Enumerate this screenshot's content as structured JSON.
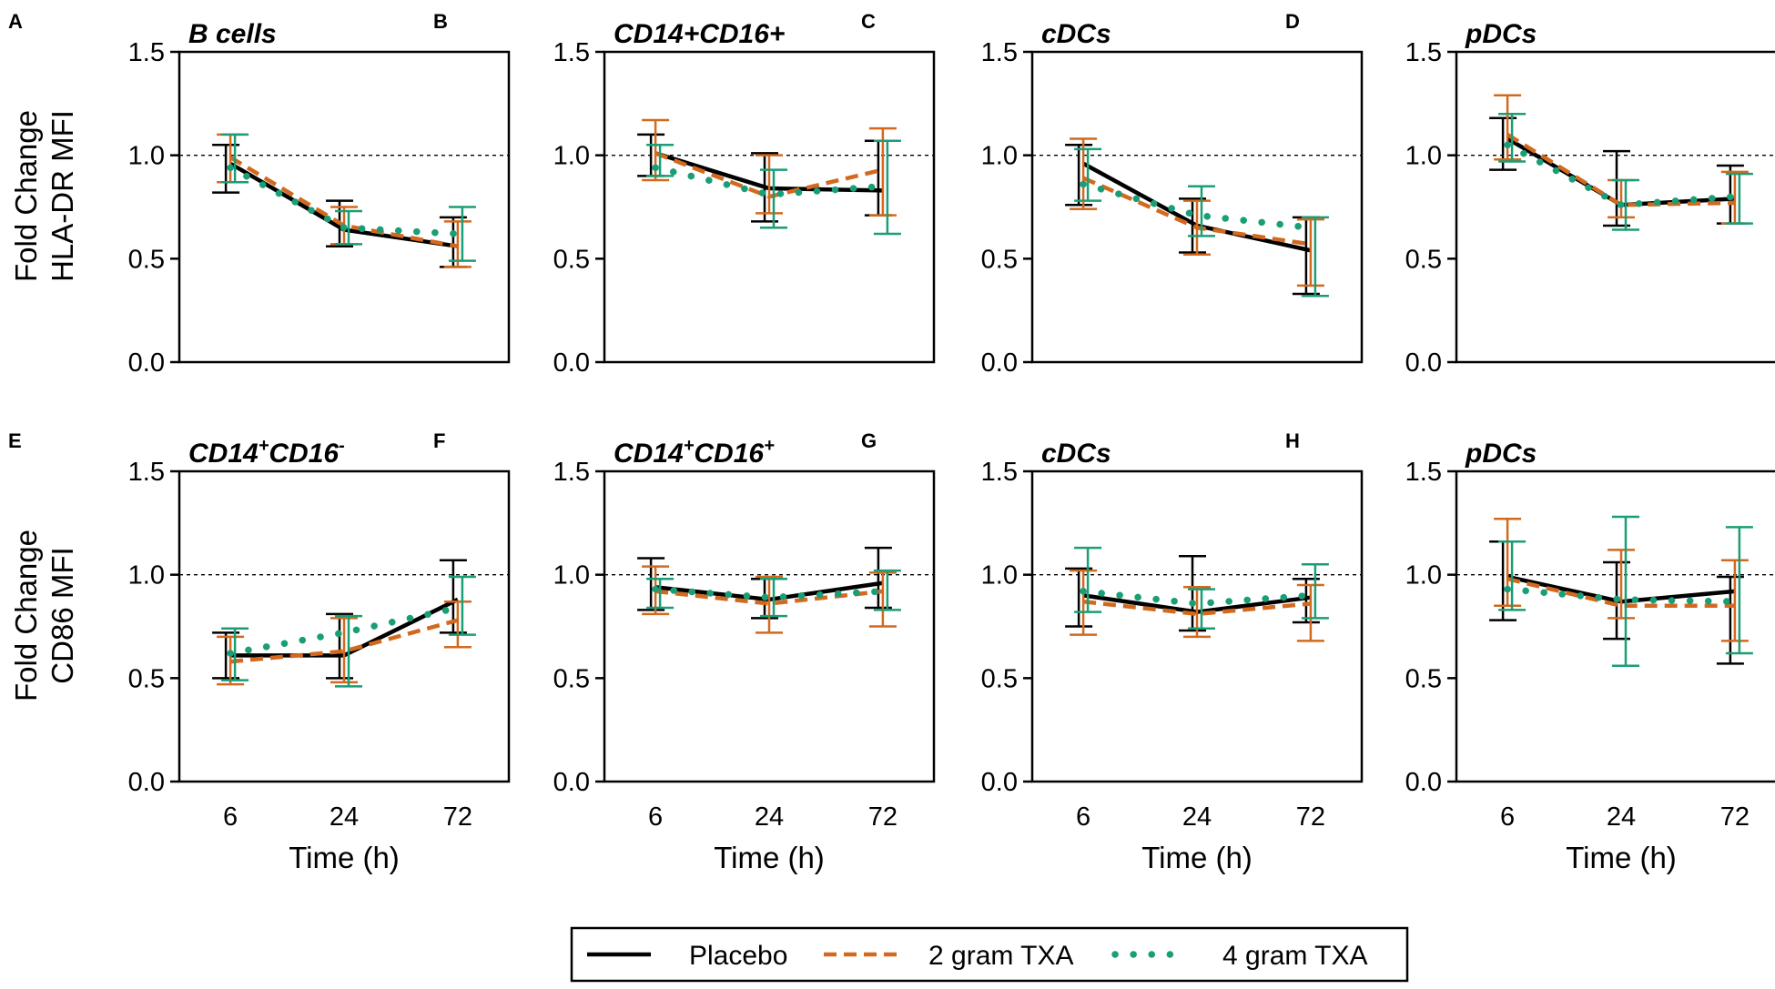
{
  "chart_data": [
    {
      "panel": "A",
      "type": "line",
      "title_parts": [
        {
          "text": "B cells"
        }
      ],
      "ylabel": [
        "Fold Change",
        "HLA-DR MFI"
      ],
      "xlabel": "",
      "categories": [
        "6",
        "24",
        "72"
      ],
      "ylim": [
        0,
        1.5
      ],
      "yticks": [
        "0.0",
        "0.5",
        "1.0",
        "1.5"
      ],
      "reference_line": 1.0,
      "series": [
        {
          "name": "Placebo",
          "values": [
            0.96,
            0.64,
            0.56
          ],
          "lower": [
            0.82,
            0.56,
            0.46
          ],
          "upper": [
            1.05,
            0.78,
            0.7
          ]
        },
        {
          "name": "2 gram TXA",
          "values": [
            0.99,
            0.66,
            0.56
          ],
          "lower": [
            0.87,
            0.57,
            0.46
          ],
          "upper": [
            1.1,
            0.75,
            0.68
          ]
        },
        {
          "name": "4 gram TXA",
          "values": [
            0.94,
            0.65,
            0.62
          ],
          "lower": [
            0.87,
            0.57,
            0.49
          ],
          "upper": [
            1.1,
            0.73,
            0.75
          ]
        }
      ]
    },
    {
      "panel": "B",
      "type": "line",
      "title_parts": [
        {
          "text": "CD14+CD16+"
        }
      ],
      "ylabel": [],
      "xlabel": "",
      "categories": [
        "6",
        "24",
        "72"
      ],
      "ylim": [
        0,
        1.5
      ],
      "yticks": [
        "0.0",
        "0.5",
        "1.0",
        "1.5"
      ],
      "reference_line": 1.0,
      "series": [
        {
          "name": "Placebo",
          "values": [
            1.01,
            0.84,
            0.83
          ],
          "lower": [
            0.9,
            0.68,
            0.71
          ],
          "upper": [
            1.1,
            1.01,
            1.07
          ]
        },
        {
          "name": "2 gram TXA",
          "values": [
            1.01,
            0.8,
            0.93
          ],
          "lower": [
            0.88,
            0.72,
            0.71
          ],
          "upper": [
            1.17,
            1.0,
            1.13
          ]
        },
        {
          "name": "4 gram TXA",
          "values": [
            0.94,
            0.81,
            0.85
          ],
          "lower": [
            0.9,
            0.65,
            0.62
          ],
          "upper": [
            1.05,
            0.93,
            1.07
          ]
        }
      ]
    },
    {
      "panel": "C",
      "type": "line",
      "title_parts": [
        {
          "text": "cDCs"
        }
      ],
      "ylabel": [],
      "xlabel": "",
      "categories": [
        "6",
        "24",
        "72"
      ],
      "ylim": [
        0,
        1.5
      ],
      "yticks": [
        "0.0",
        "0.5",
        "1.0",
        "1.5"
      ],
      "reference_line": 1.0,
      "series": [
        {
          "name": "Placebo",
          "values": [
            0.96,
            0.66,
            0.54
          ],
          "lower": [
            0.76,
            0.53,
            0.33
          ],
          "upper": [
            1.05,
            0.79,
            0.7
          ]
        },
        {
          "name": "2 gram TXA",
          "values": [
            0.89,
            0.65,
            0.57
          ],
          "lower": [
            0.74,
            0.52,
            0.37
          ],
          "upper": [
            1.08,
            0.78,
            0.69
          ]
        },
        {
          "name": "4 gram TXA",
          "values": [
            0.86,
            0.71,
            0.65
          ],
          "lower": [
            0.78,
            0.61,
            0.32
          ],
          "upper": [
            1.03,
            0.85,
            0.7
          ]
        }
      ]
    },
    {
      "panel": "D",
      "type": "line",
      "title_parts": [
        {
          "text": "pDCs"
        }
      ],
      "ylabel": [],
      "xlabel": "",
      "categories": [
        "6",
        "24",
        "72"
      ],
      "ylim": [
        0,
        1.5
      ],
      "yticks": [
        "0.0",
        "0.5",
        "1.0",
        "1.5"
      ],
      "reference_line": 1.0,
      "series": [
        {
          "name": "Placebo",
          "values": [
            1.08,
            0.76,
            0.79
          ],
          "lower": [
            0.93,
            0.66,
            0.67
          ],
          "upper": [
            1.18,
            1.02,
            0.95
          ]
        },
        {
          "name": "2 gram TXA",
          "values": [
            1.1,
            0.76,
            0.77
          ],
          "lower": [
            0.98,
            0.7,
            0.67
          ],
          "upper": [
            1.29,
            0.88,
            0.92
          ]
        },
        {
          "name": "4 gram TXA",
          "values": [
            1.05,
            0.76,
            0.8
          ],
          "lower": [
            0.97,
            0.64,
            0.67
          ],
          "upper": [
            1.2,
            0.88,
            0.91
          ]
        }
      ]
    },
    {
      "panel": "E",
      "type": "line",
      "title_parts": [
        {
          "text": "CD14"
        },
        {
          "text": "+",
          "sup": true
        },
        {
          "text": "CD16"
        },
        {
          "text": "-",
          "sup": true
        }
      ],
      "ylabel": [
        "Fold Change",
        "CD86 MFI"
      ],
      "xlabel": "Time (h)",
      "categories": [
        "6",
        "24",
        "72"
      ],
      "ylim": [
        0,
        1.5
      ],
      "yticks": [
        "0.0",
        "0.5",
        "1.0",
        "1.5"
      ],
      "reference_line": 1.0,
      "series": [
        {
          "name": "Placebo",
          "values": [
            0.61,
            0.61,
            0.88
          ],
          "lower": [
            0.5,
            0.5,
            0.72
          ],
          "upper": [
            0.72,
            0.81,
            1.07
          ]
        },
        {
          "name": "2 gram TXA",
          "values": [
            0.58,
            0.63,
            0.78
          ],
          "lower": [
            0.47,
            0.48,
            0.65
          ],
          "upper": [
            0.7,
            0.79,
            0.87
          ]
        },
        {
          "name": "4 gram TXA",
          "values": [
            0.62,
            0.72,
            0.84
          ],
          "lower": [
            0.49,
            0.46,
            0.71
          ],
          "upper": [
            0.74,
            0.8,
            0.99
          ]
        }
      ]
    },
    {
      "panel": "F",
      "type": "line",
      "title_parts": [
        {
          "text": "CD14"
        },
        {
          "text": "+",
          "sup": true
        },
        {
          "text": "CD16"
        },
        {
          "text": "+",
          "sup": true
        }
      ],
      "ylabel": [],
      "xlabel": "Time (h)",
      "categories": [
        "6",
        "24",
        "72"
      ],
      "ylim": [
        0,
        1.5
      ],
      "yticks": [
        "0.0",
        "0.5",
        "1.0",
        "1.5"
      ],
      "reference_line": 1.0,
      "series": [
        {
          "name": "Placebo",
          "values": [
            0.94,
            0.88,
            0.96
          ],
          "lower": [
            0.83,
            0.79,
            0.84
          ],
          "upper": [
            1.08,
            0.98,
            1.13
          ]
        },
        {
          "name": "2 gram TXA",
          "values": [
            0.92,
            0.86,
            0.92
          ],
          "lower": [
            0.81,
            0.72,
            0.75
          ],
          "upper": [
            1.04,
            0.99,
            1.01
          ]
        },
        {
          "name": "4 gram TXA",
          "values": [
            0.93,
            0.89,
            0.92
          ],
          "lower": [
            0.84,
            0.8,
            0.83
          ],
          "upper": [
            0.98,
            0.98,
            1.02
          ]
        }
      ]
    },
    {
      "panel": "G",
      "type": "line",
      "title_parts": [
        {
          "text": "cDCs"
        }
      ],
      "ylabel": [],
      "xlabel": "Time (h)",
      "categories": [
        "6",
        "24",
        "72"
      ],
      "ylim": [
        0,
        1.5
      ],
      "yticks": [
        "0.0",
        "0.5",
        "1.0",
        "1.5"
      ],
      "reference_line": 1.0,
      "series": [
        {
          "name": "Placebo",
          "values": [
            0.9,
            0.82,
            0.89
          ],
          "lower": [
            0.75,
            0.73,
            0.77
          ],
          "upper": [
            1.03,
            1.09,
            0.98
          ]
        },
        {
          "name": "2 gram TXA",
          "values": [
            0.87,
            0.81,
            0.86
          ],
          "lower": [
            0.71,
            0.7,
            0.68
          ],
          "upper": [
            1.02,
            0.94,
            0.95
          ]
        },
        {
          "name": "4 gram TXA",
          "values": [
            0.92,
            0.86,
            0.9
          ],
          "lower": [
            0.82,
            0.74,
            0.79
          ],
          "upper": [
            1.13,
            0.93,
            1.05
          ]
        }
      ]
    },
    {
      "panel": "H",
      "type": "line",
      "title_parts": [
        {
          "text": "pDCs"
        }
      ],
      "ylabel": [],
      "xlabel": "Time (h)",
      "categories": [
        "6",
        "24",
        "72"
      ],
      "ylim": [
        0,
        1.5
      ],
      "yticks": [
        "0.0",
        "0.5",
        "1.0",
        "1.5"
      ],
      "reference_line": 1.0,
      "series": [
        {
          "name": "Placebo",
          "values": [
            0.99,
            0.87,
            0.92
          ],
          "lower": [
            0.78,
            0.69,
            0.57
          ],
          "upper": [
            1.16,
            1.06,
            0.99
          ]
        },
        {
          "name": "2 gram TXA",
          "values": [
            0.98,
            0.85,
            0.85
          ],
          "lower": [
            0.85,
            0.79,
            0.68
          ],
          "upper": [
            1.27,
            1.12,
            1.07
          ]
        },
        {
          "name": "4 gram TXA",
          "values": [
            0.93,
            0.88,
            0.87
          ],
          "lower": [
            0.83,
            0.56,
            0.62
          ],
          "upper": [
            1.16,
            1.28,
            1.23
          ]
        }
      ]
    }
  ],
  "legend": {
    "items": [
      {
        "name": "Placebo",
        "style": "solid"
      },
      {
        "name": "2 gram TXA",
        "style": "dashed"
      },
      {
        "name": "4 gram TXA",
        "style": "dotted"
      }
    ]
  },
  "colors": {
    "Placebo": "#000000",
    "2 gram TXA": "#d2691e",
    "4 gram TXA": "#1a9e77",
    "axis": "#000000"
  }
}
